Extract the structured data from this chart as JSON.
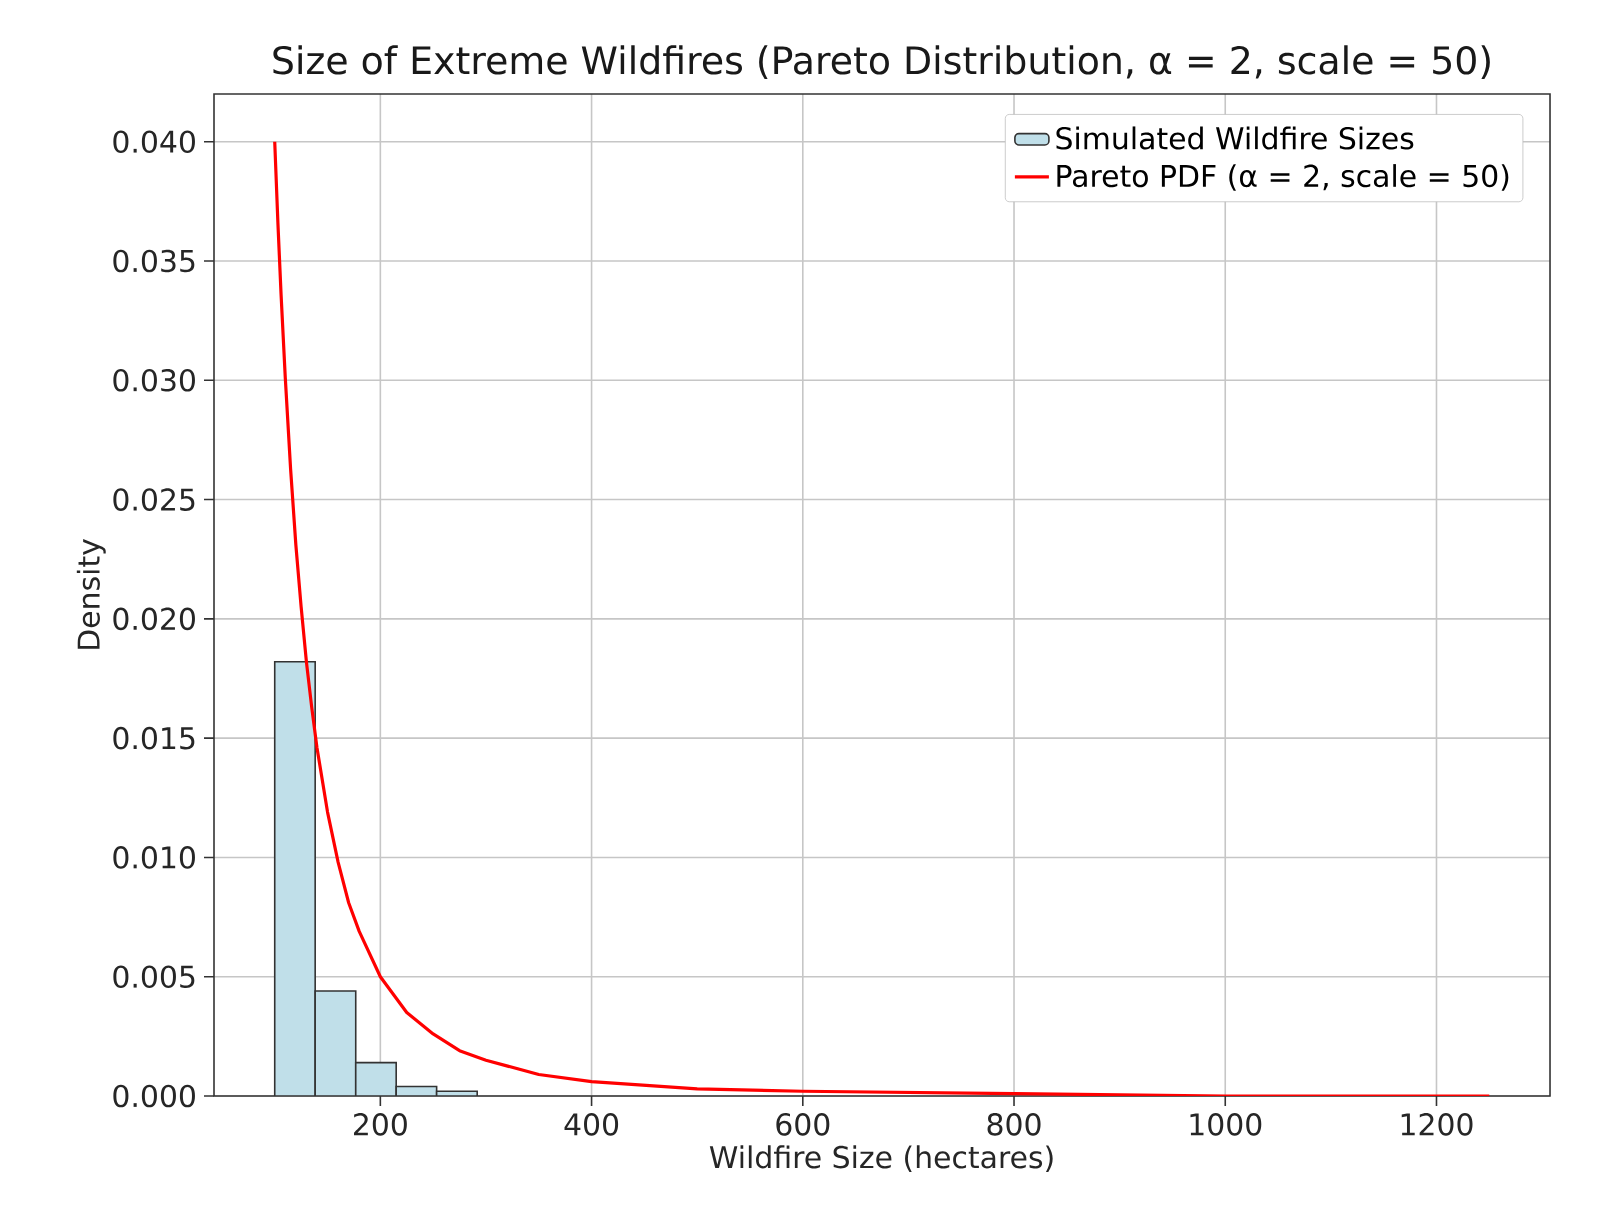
{
  "chart_data": {
    "type": "histogram",
    "title": "Size of Extreme Wildfires (Pareto Distribution, α = 2, scale = 50)",
    "xlabel": "Wildfire Size (hectares)",
    "ylabel": "Density",
    "xlim": [
      42.5,
      1307.5
    ],
    "ylim": [
      0,
      0.042
    ],
    "xticks": [
      200,
      400,
      600,
      800,
      1000,
      1200
    ],
    "yticks": [
      {
        "value": 0,
        "label": "0.000"
      },
      {
        "value": 0.005,
        "label": "0.005"
      },
      {
        "value": 0.01,
        "label": "0.010"
      },
      {
        "value": 0.015,
        "label": "0.015"
      },
      {
        "value": 0.02,
        "label": "0.020"
      },
      {
        "value": 0.025,
        "label": "0.025"
      },
      {
        "value": 0.03,
        "label": "0.030"
      },
      {
        "value": 0.035,
        "label": "0.035"
      },
      {
        "value": 0.04,
        "label": "0.040"
      }
    ],
    "grid": true,
    "legend": "top right",
    "series": [
      {
        "name": "Simulated Wildfire Sizes",
        "color": "#c0dfe9",
        "bins": [
          100,
          138.3,
          176.7,
          215,
          253.3,
          291.7
        ],
        "values": [
          0.0182,
          0.0044,
          0.0014,
          0.0004,
          0.0002
        ]
      },
      {
        "name": "Pareto PDF (α = 2, scale = 50)",
        "type": "line",
        "color": "#ff0000",
        "x": [
          100,
          103,
          106,
          110,
          115,
          120,
          125,
          130,
          135,
          140,
          150,
          160,
          170,
          180,
          200,
          225,
          250,
          275,
          300,
          350,
          400,
          500,
          600,
          800,
          1000,
          1250
        ],
        "values": [
          0.04,
          0.0366,
          0.0336,
          0.0301,
          0.0263,
          0.0231,
          0.0205,
          0.0182,
          0.0163,
          0.0146,
          0.0119,
          0.0098,
          0.0081,
          0.0069,
          0.005,
          0.0035,
          0.0026,
          0.0019,
          0.0015,
          0.0009,
          0.0006,
          0.0003,
          0.0002,
          0.0001,
          0,
          0
        ]
      }
    ]
  }
}
